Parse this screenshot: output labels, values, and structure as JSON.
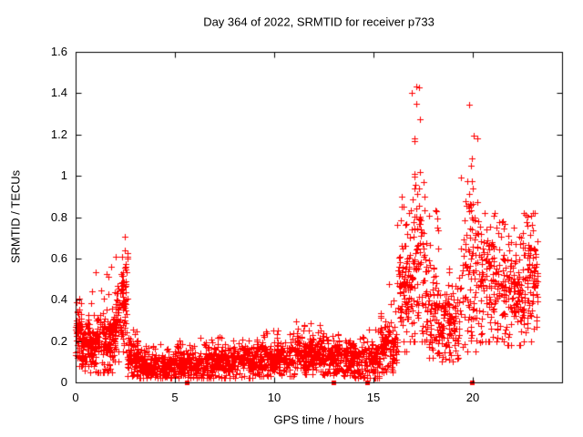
{
  "chart_data": {
    "type": "scatter",
    "title": "Day 364 of 2022, SRMTID for receiver p733",
    "xlabel": "GPS time / hours",
    "ylabel": "SRMTID / TECUs",
    "xlim": [
      0,
      24.5
    ],
    "ylim": [
      0,
      1.6
    ],
    "xticks": [
      0,
      5,
      10,
      15,
      20
    ],
    "yticks": [
      0,
      0.2,
      0.4,
      0.6,
      0.8,
      1,
      1.2,
      1.4,
      1.6
    ],
    "grid": false,
    "legend": null,
    "marker": "plus",
    "marker_color": "#ff0000",
    "axis_color": "#000000",
    "background": "#ffffff",
    "seed": 20221364,
    "series": [
      {
        "name": "SRMTID",
        "segments": [
          {
            "t0": 0.0,
            "t1": 0.3,
            "n": 60,
            "mode": 0.25,
            "sigma": 0.07,
            "min": 0.08,
            "max": 0.46,
            "tail": 0.1
          },
          {
            "t0": 0.3,
            "t1": 1.0,
            "n": 120,
            "mode": 0.18,
            "sigma": 0.06,
            "min": 0.05,
            "max": 0.5,
            "tail": 0.08
          },
          {
            "t0": 1.0,
            "t1": 2.0,
            "n": 160,
            "mode": 0.2,
            "sigma": 0.08,
            "min": 0.05,
            "max": 0.58,
            "tail": 0.1
          },
          {
            "t0": 2.0,
            "t1": 2.6,
            "n": 100,
            "mode": 0.33,
            "sigma": 0.12,
            "min": 0.1,
            "max": 0.72,
            "tail": 0.18,
            "peak_t": 2.45,
            "peak_w": 0.08
          },
          {
            "t0": 2.6,
            "t1": 3.2,
            "n": 90,
            "mode": 0.12,
            "sigma": 0.05,
            "min": 0.03,
            "max": 0.3,
            "tail": 0.05
          },
          {
            "t0": 3.2,
            "t1": 5.0,
            "n": 220,
            "mode": 0.08,
            "sigma": 0.035,
            "min": 0.02,
            "max": 0.2,
            "tail": 0.04
          },
          {
            "t0": 5.0,
            "t1": 7.0,
            "n": 240,
            "mode": 0.09,
            "sigma": 0.04,
            "min": 0.02,
            "max": 0.22,
            "tail": 0.05
          },
          {
            "t0": 7.0,
            "t1": 9.0,
            "n": 240,
            "mode": 0.1,
            "sigma": 0.04,
            "min": 0.02,
            "max": 0.24,
            "tail": 0.05
          },
          {
            "t0": 9.0,
            "t1": 11.0,
            "n": 240,
            "mode": 0.11,
            "sigma": 0.045,
            "min": 0.03,
            "max": 0.26,
            "tail": 0.06
          },
          {
            "t0": 11.0,
            "t1": 12.5,
            "n": 200,
            "mode": 0.14,
            "sigma": 0.05,
            "min": 0.04,
            "max": 0.3,
            "tail": 0.08
          },
          {
            "t0": 12.5,
            "t1": 14.0,
            "n": 180,
            "mode": 0.11,
            "sigma": 0.045,
            "min": 0.03,
            "max": 0.26,
            "tail": 0.06
          },
          {
            "t0": 14.0,
            "t1": 15.3,
            "n": 150,
            "mode": 0.1,
            "sigma": 0.05,
            "min": 0.02,
            "max": 0.3,
            "tail": 0.08
          },
          {
            "t0": 15.3,
            "t1": 16.2,
            "n": 110,
            "mode": 0.18,
            "sigma": 0.08,
            "min": 0.05,
            "max": 0.5,
            "tail": 0.12
          },
          {
            "t0": 16.2,
            "t1": 16.8,
            "n": 90,
            "mode": 0.45,
            "sigma": 0.15,
            "min": 0.15,
            "max": 0.95,
            "tail": 0.18
          },
          {
            "t0": 16.8,
            "t1": 17.6,
            "n": 110,
            "mode": 0.55,
            "sigma": 0.22,
            "min": 0.2,
            "max": 1.47,
            "tail": 0.28,
            "peak_t": 17.15,
            "peak_w": 0.12
          },
          {
            "t0": 17.6,
            "t1": 18.3,
            "n": 90,
            "mode": 0.35,
            "sigma": 0.12,
            "min": 0.12,
            "max": 0.85,
            "tail": 0.12
          },
          {
            "t0": 18.3,
            "t1": 19.4,
            "n": 120,
            "mode": 0.28,
            "sigma": 0.09,
            "min": 0.1,
            "max": 0.55,
            "tail": 0.1
          },
          {
            "t0": 19.4,
            "t1": 20.4,
            "n": 110,
            "mode": 0.5,
            "sigma": 0.22,
            "min": 0.15,
            "max": 1.42,
            "tail": 0.25,
            "peak_t": 19.95,
            "peak_w": 0.1
          },
          {
            "t0": 20.4,
            "t1": 21.3,
            "n": 110,
            "mode": 0.45,
            "sigma": 0.15,
            "min": 0.2,
            "max": 0.82,
            "tail": 0.12
          },
          {
            "t0": 21.3,
            "t1": 22.5,
            "n": 140,
            "mode": 0.42,
            "sigma": 0.13,
            "min": 0.18,
            "max": 0.8,
            "tail": 0.12
          },
          {
            "t0": 22.5,
            "t1": 23.3,
            "n": 110,
            "mode": 0.5,
            "sigma": 0.15,
            "min": 0.2,
            "max": 0.82,
            "tail": 0.12
          }
        ],
        "zero_points_t": [
          5.6,
          13.0,
          14.7,
          19.95
        ],
        "peaks_note": {
          "max_value": 1.47,
          "max_value_t": 17.2,
          "second_peak_value": 1.42,
          "second_peak_t": 20.0,
          "early_bump_value": 0.72,
          "early_bump_t": 2.5
        }
      }
    ]
  }
}
